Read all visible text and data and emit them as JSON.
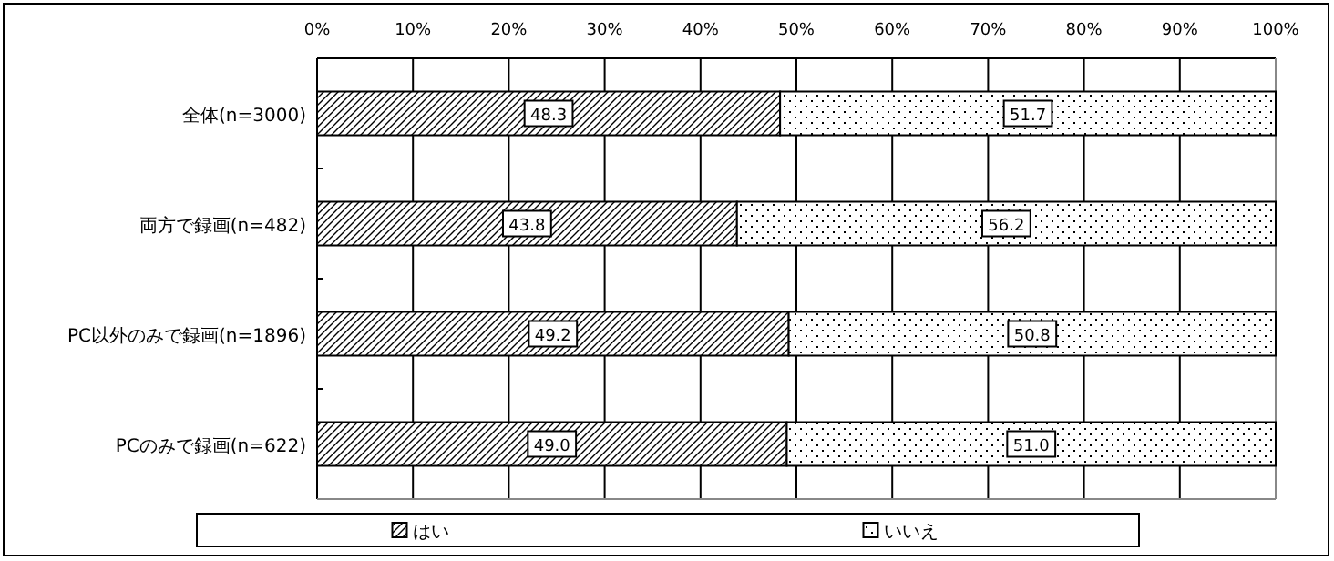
{
  "chart_data": {
    "type": "bar",
    "orientation": "horizontal",
    "stacked": true,
    "categories": [
      "全体(n=3000)",
      "両方で録画(n=482)",
      "PC以外のみで録画(n=1896)",
      "PCのみで録画(n=622)"
    ],
    "series": [
      {
        "name": "はい",
        "color": "#000000",
        "values": [
          48.3,
          43.8,
          49.2,
          49.0
        ],
        "value_labels": [
          "48.3",
          "43.8",
          "49.2",
          "49.0"
        ]
      },
      {
        "name": "いいえ",
        "color": "#000000",
        "values": [
          51.7,
          56.2,
          50.8,
          51.0
        ],
        "value_labels": [
          "51.7",
          "56.2",
          "50.8",
          "51.0"
        ]
      }
    ],
    "xlim": [
      0,
      100
    ],
    "xticks": [
      {
        "value": 0,
        "label": "0%"
      },
      {
        "value": 10,
        "label": "10%"
      },
      {
        "value": 20,
        "label": "20%"
      },
      {
        "value": 30,
        "label": "30%"
      },
      {
        "value": 40,
        "label": "40%"
      },
      {
        "value": 50,
        "label": "50%"
      },
      {
        "value": 60,
        "label": "60%"
      },
      {
        "value": 70,
        "label": "70%"
      },
      {
        "value": 80,
        "label": "80%"
      },
      {
        "value": 90,
        "label": "90%"
      },
      {
        "value": 100,
        "label": "100%"
      }
    ],
    "grid": "x",
    "legend": "bottom"
  }
}
